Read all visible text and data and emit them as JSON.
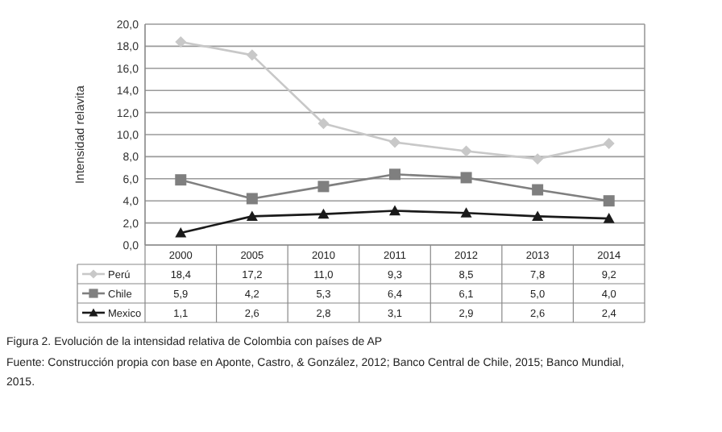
{
  "chart_data": {
    "type": "line",
    "ylabel": "Intensidad relavita",
    "categories": [
      "2000",
      "2005",
      "2010",
      "2011",
      "2012",
      "2013",
      "2014"
    ],
    "series": [
      {
        "name": "Perú",
        "color": "#c8c8c8",
        "marker": "diamond",
        "values": [
          18.4,
          17.2,
          11.0,
          9.3,
          8.5,
          7.8,
          9.2
        ],
        "value_labels": [
          "18,4",
          "17,2",
          "11,0",
          "9,3",
          "8,5",
          "7,8",
          "9,2"
        ]
      },
      {
        "name": "Chile",
        "color": "#7f7f7f",
        "marker": "square",
        "values": [
          5.9,
          4.2,
          5.3,
          6.4,
          6.1,
          5.0,
          4.0
        ],
        "value_labels": [
          "5,9",
          "4,2",
          "5,3",
          "6,4",
          "6,1",
          "5,0",
          "4,0"
        ]
      },
      {
        "name": "Mexico",
        "color": "#1a1a1a",
        "marker": "triangle",
        "values": [
          1.1,
          2.6,
          2.8,
          3.1,
          2.9,
          2.6,
          2.4
        ],
        "value_labels": [
          "1,1",
          "2,6",
          "2,8",
          "3,1",
          "2,9",
          "2,6",
          "2,4"
        ]
      }
    ],
    "ylim": [
      0,
      20
    ],
    "yticks": [
      {
        "value": 0,
        "label": "0,0"
      },
      {
        "value": 2,
        "label": "2,0"
      },
      {
        "value": 4,
        "label": "4,0"
      },
      {
        "value": 6,
        "label": "6,0"
      },
      {
        "value": 8,
        "label": "8,0"
      },
      {
        "value": 10,
        "label": "10,0"
      },
      {
        "value": 12,
        "label": "12,0"
      },
      {
        "value": 14,
        "label": "14,0"
      },
      {
        "value": 16,
        "label": "16,0"
      },
      {
        "value": 18,
        "label": "18,0"
      },
      {
        "value": 20,
        "label": "20,0"
      }
    ],
    "grid": "y",
    "legend": "bottom",
    "line_style": "solid",
    "annotations": [
      "Figura 2. Evolución de la intensidad relativa de Colombia con países de AP",
      "Fuente: Construcción propia con base en Aponte, Castro, & González, 2012; Banco Central de Chile, 2015; Banco Mundial, 2015."
    ]
  }
}
